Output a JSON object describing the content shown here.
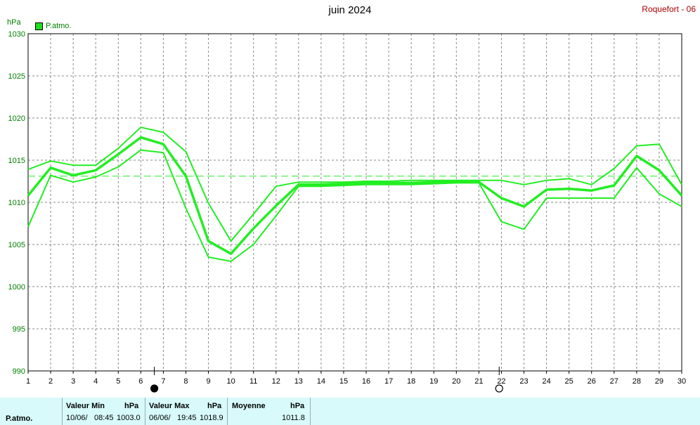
{
  "title": "juin 2024",
  "station": "Roquefort - 06",
  "unit": "hPa",
  "legend": {
    "label": "P.atmo."
  },
  "colors": {
    "series": "#22ee22",
    "grid": "#888888",
    "station": "#b00000",
    "panel": "#d8fafa"
  },
  "chart_data": {
    "type": "line",
    "x": [
      1,
      2,
      3,
      4,
      5,
      6,
      7,
      8,
      9,
      10,
      11,
      12,
      13,
      14,
      15,
      16,
      17,
      18,
      19,
      20,
      21,
      22,
      23,
      24,
      25,
      26,
      27,
      28,
      29,
      30
    ],
    "xlim": [
      1,
      30
    ],
    "ylim": [
      990,
      1030
    ],
    "yticks": [
      990,
      995,
      1000,
      1005,
      1010,
      1015,
      1020,
      1025,
      1030
    ],
    "grid": true,
    "mean_line": 1013.1,
    "moon_phases": [
      {
        "day": 6.6,
        "phase": "new"
      },
      {
        "day": 21.9,
        "phase": "full"
      }
    ],
    "series": [
      {
        "role": "max",
        "values": [
          1013.9,
          1014.9,
          1014.4,
          1014.4,
          1016.4,
          1018.9,
          1018.3,
          1016.0,
          1009.9,
          1005.4,
          1008.6,
          1011.9,
          1012.4,
          1012.4,
          1012.4,
          1012.5,
          1012.5,
          1012.6,
          1012.6,
          1012.6,
          1012.6,
          1012.6,
          1012.1,
          1012.6,
          1012.8,
          1012.1,
          1014.0,
          1016.7,
          1016.9,
          1012.1
        ]
      },
      {
        "role": "mean",
        "values": [
          1010.8,
          1014.1,
          1013.2,
          1013.8,
          1015.7,
          1017.7,
          1016.9,
          1013.1,
          1005.4,
          1003.9,
          1006.9,
          1009.6,
          1012.1,
          1012.1,
          1012.2,
          1012.3,
          1012.3,
          1012.3,
          1012.4,
          1012.5,
          1012.4,
          1010.5,
          1009.5,
          1011.5,
          1011.6,
          1011.4,
          1012.0,
          1015.5,
          1013.8,
          1010.8
        ]
      },
      {
        "role": "min",
        "values": [
          1007.1,
          1013.2,
          1012.4,
          1013.0,
          1014.2,
          1016.2,
          1015.9,
          1009.3,
          1003.5,
          1003.0,
          1005.0,
          1008.4,
          1011.9,
          1011.9,
          1012.0,
          1012.1,
          1012.1,
          1012.1,
          1012.2,
          1012.3,
          1012.3,
          1007.7,
          1006.8,
          1010.5,
          1010.5,
          1010.5,
          1010.5,
          1014.1,
          1011.0,
          1009.5
        ]
      }
    ]
  },
  "summary": {
    "row_label": "P.atmo.",
    "min": {
      "label": "Valeur Min",
      "unit": "hPa",
      "date": "10/06/",
      "time": "08:45",
      "value": "1003.0"
    },
    "max": {
      "label": "Valeur Max",
      "unit": "hPa",
      "date": "06/06/",
      "time": "19:45",
      "value": "1018.9"
    },
    "avg": {
      "label": "Moyenne",
      "unit": "hPa",
      "value": "1011.8"
    }
  }
}
